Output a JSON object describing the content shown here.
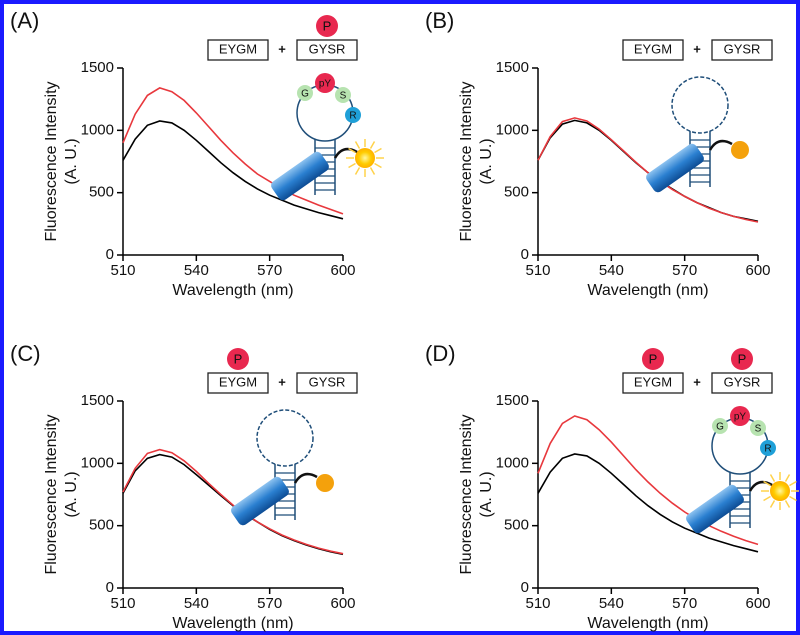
{
  "chart_data": [
    {
      "type": "line",
      "panel": "(A)",
      "plus": "+",
      "peptides": [
        {
          "text": "EYGM"
        },
        {
          "text": "GYSR",
          "phospho": "P"
        }
      ],
      "residues": [
        "G",
        "pY",
        "S",
        "R"
      ],
      "ylabel": [
        "Fluorescence Intensity",
        "(A. U.)"
      ],
      "xlabel": "Wavelength (nm)",
      "x": [
        510,
        515,
        520,
        525,
        530,
        535,
        540,
        545,
        550,
        555,
        560,
        565,
        570,
        575,
        580,
        585,
        590,
        595,
        600
      ],
      "series": [
        {
          "color": "#000000",
          "values": [
            760,
            930,
            1040,
            1075,
            1060,
            1000,
            920,
            830,
            740,
            660,
            590,
            530,
            480,
            440,
            400,
            370,
            340,
            315,
            290
          ]
        },
        {
          "color": "#e8383d",
          "values": [
            900,
            1130,
            1280,
            1340,
            1310,
            1240,
            1140,
            1030,
            920,
            820,
            730,
            650,
            590,
            530,
            480,
            440,
            400,
            365,
            330
          ]
        }
      ],
      "xlim": [
        510,
        600
      ],
      "ylim": [
        0,
        1500
      ],
      "xticks": [
        510,
        540,
        570,
        600
      ],
      "yticks": [
        0,
        500,
        1000,
        1500
      ]
    },
    {
      "type": "line",
      "panel": "(B)",
      "plus": "+",
      "peptides": [
        {
          "text": "EYGM"
        },
        {
          "text": "GYSR"
        }
      ],
      "ylabel": [
        "Fluorescence Intensity",
        "(A. U.)"
      ],
      "xlabel": "Wavelength (nm)",
      "x": [
        510,
        515,
        520,
        525,
        530,
        535,
        540,
        545,
        550,
        555,
        560,
        565,
        570,
        575,
        580,
        585,
        590,
        595,
        600
      ],
      "series": [
        {
          "color": "#000000",
          "values": [
            760,
            940,
            1050,
            1080,
            1060,
            1000,
            920,
            830,
            740,
            660,
            590,
            530,
            470,
            420,
            380,
            340,
            310,
            290,
            270
          ]
        },
        {
          "color": "#e8383d",
          "values": [
            760,
            950,
            1070,
            1100,
            1075,
            1010,
            925,
            835,
            745,
            660,
            590,
            525,
            470,
            420,
            375,
            340,
            310,
            285,
            265
          ]
        }
      ],
      "xlim": [
        510,
        600
      ],
      "ylim": [
        0,
        1500
      ],
      "xticks": [
        510,
        540,
        570,
        600
      ],
      "yticks": [
        0,
        500,
        1000,
        1500
      ]
    },
    {
      "type": "line",
      "panel": "(C)",
      "plus": "+",
      "peptides": [
        {
          "text": "EYGM",
          "phospho": "P"
        },
        {
          "text": "GYSR"
        }
      ],
      "ylabel": [
        "Fluorescence Intensity",
        "(A. U.)"
      ],
      "xlabel": "Wavelength (nm)",
      "x": [
        510,
        515,
        520,
        525,
        530,
        535,
        540,
        545,
        550,
        555,
        560,
        565,
        570,
        575,
        580,
        585,
        590,
        595,
        600
      ],
      "series": [
        {
          "color": "#000000",
          "values": [
            760,
            940,
            1040,
            1070,
            1050,
            990,
            910,
            825,
            740,
            660,
            590,
            530,
            470,
            420,
            380,
            345,
            315,
            290,
            270
          ]
        },
        {
          "color": "#e8383d",
          "values": [
            770,
            960,
            1080,
            1110,
            1085,
            1020,
            935,
            840,
            750,
            665,
            595,
            530,
            475,
            425,
            385,
            350,
            320,
            295,
            275
          ]
        }
      ],
      "xlim": [
        510,
        600
      ],
      "ylim": [
        0,
        1500
      ],
      "xticks": [
        510,
        540,
        570,
        600
      ],
      "yticks": [
        0,
        500,
        1000,
        1500
      ]
    },
    {
      "type": "line",
      "panel": "(D)",
      "plus": "+",
      "peptides": [
        {
          "text": "EYGM",
          "phospho": "P"
        },
        {
          "text": "GYSR",
          "phospho": "P"
        }
      ],
      "residues": [
        "G",
        "pY",
        "S",
        "R"
      ],
      "ylabel": [
        "Fluorescence Intensity",
        "(A. U.)"
      ],
      "xlabel": "Wavelength (nm)",
      "x": [
        510,
        515,
        520,
        525,
        530,
        535,
        540,
        545,
        550,
        555,
        560,
        565,
        570,
        575,
        580,
        585,
        590,
        595,
        600
      ],
      "series": [
        {
          "color": "#000000",
          "values": [
            760,
            930,
            1040,
            1075,
            1060,
            1000,
            920,
            830,
            740,
            660,
            590,
            530,
            480,
            440,
            400,
            370,
            340,
            315,
            290
          ]
        },
        {
          "color": "#e8383d",
          "values": [
            920,
            1160,
            1320,
            1380,
            1350,
            1270,
            1170,
            1060,
            950,
            850,
            760,
            680,
            610,
            550,
            500,
            455,
            415,
            380,
            350
          ]
        }
      ],
      "xlim": [
        510,
        600
      ],
      "ylim": [
        0,
        1500
      ],
      "xticks": [
        510,
        540,
        570,
        600
      ],
      "yticks": [
        0,
        500,
        1000,
        1500
      ]
    }
  ]
}
